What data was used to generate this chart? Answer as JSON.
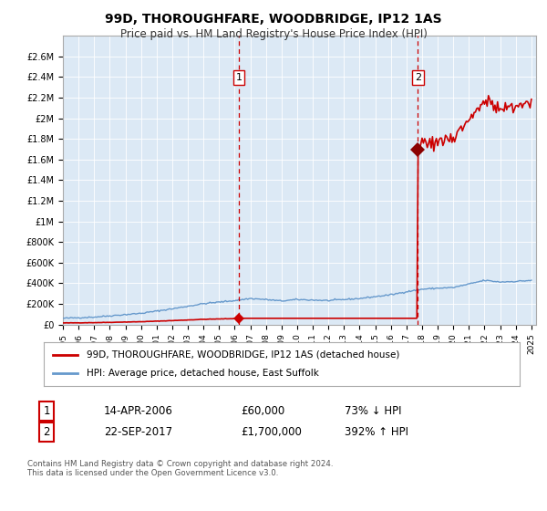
{
  "title": "99D, THOROUGHFARE, WOODBRIDGE, IP12 1AS",
  "subtitle": "Price paid vs. HM Land Registry's House Price Index (HPI)",
  "x_start_year": 1995,
  "x_end_year": 2025,
  "y_max": 2800000,
  "y_ticks": [
    0,
    200000,
    400000,
    600000,
    800000,
    1000000,
    1200000,
    1400000,
    1600000,
    1800000,
    2000000,
    2200000,
    2400000,
    2600000
  ],
  "y_tick_labels": [
    "£0",
    "£200K",
    "£400K",
    "£600K",
    "£800K",
    "£1M",
    "£1.2M",
    "£1.4M",
    "£1.6M",
    "£1.8M",
    "£2M",
    "£2.2M",
    "£2.4M",
    "£2.6M"
  ],
  "sale1_date": 2006.28,
  "sale1_price": 60000,
  "sale1_label": "1",
  "sale1_text": "14-APR-2006",
  "sale1_amount": "£60,000",
  "sale1_hpi": "73% ↓ HPI",
  "sale2_date": 2017.73,
  "sale2_price": 1700000,
  "sale2_label": "2",
  "sale2_text": "22-SEP-2017",
  "sale2_amount": "£1,700,000",
  "sale2_hpi": "392% ↑ HPI",
  "background_color": "#dce9f5",
  "red_line_color": "#cc0000",
  "blue_line_color": "#6699cc",
  "dashed_line_color": "#cc0000",
  "legend_label1": "99D, THOROUGHFARE, WOODBRIDGE, IP12 1AS (detached house)",
  "legend_label2": "HPI: Average price, detached house, East Suffolk",
  "footer": "Contains HM Land Registry data © Crown copyright and database right 2024.\nThis data is licensed under the Open Government Licence v3.0."
}
